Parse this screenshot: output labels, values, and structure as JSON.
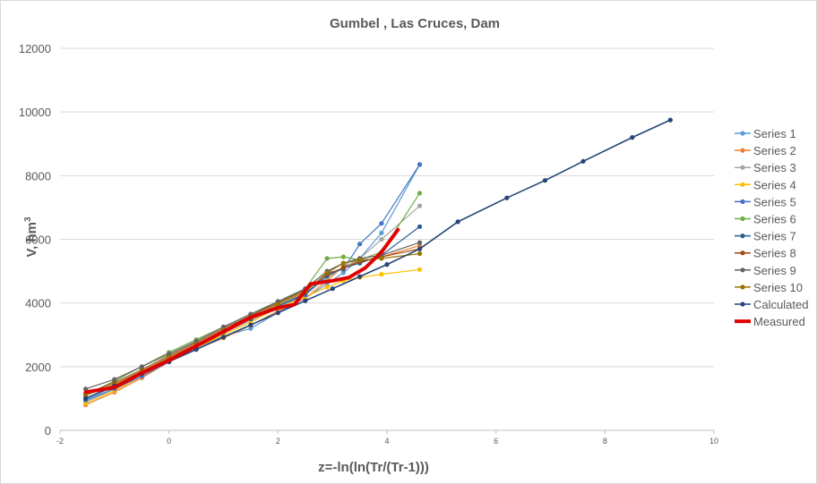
{
  "chart_data": {
    "type": "line",
    "title": "Gumbel , Las Cruces, Dam",
    "xlabel": "z=-ln(ln(Tr/(Tr-1)))",
    "ylabel_main": "V, hm",
    "ylabel_sup": "3",
    "xlim": [
      -2,
      10
    ],
    "ylim": [
      0,
      12000
    ],
    "xticks": [
      "-2",
      "0",
      "2",
      "4",
      "6",
      "8",
      "10"
    ],
    "yticks": [
      "0",
      "2000",
      "4000",
      "6000",
      "8000",
      "10000",
      "12000"
    ],
    "grid": "horizontal",
    "legend_position": "right",
    "series": [
      {
        "name": "Series 1",
        "color": "#5b9bd5",
        "width": 1.2,
        "markers": true,
        "x": [
          -1.53,
          -1.0,
          -0.5,
          0.0,
          0.5,
          1.0,
          1.5,
          2.0,
          2.5,
          2.9,
          3.2,
          3.5,
          3.9,
          4.6
        ],
        "y": [
          900,
          1300,
          1750,
          2200,
          2600,
          2950,
          3200,
          3700,
          4150,
          4600,
          4950,
          5400,
          6200,
          8350
        ]
      },
      {
        "name": "Series 2",
        "color": "#ed7d31",
        "width": 1.2,
        "markers": true,
        "x": [
          -1.53,
          -1.0,
          -0.5,
          0.0,
          0.5,
          1.0,
          1.5,
          2.0,
          2.5,
          2.9,
          3.2,
          3.5,
          3.9,
          4.6
        ],
        "y": [
          800,
          1200,
          1650,
          2150,
          2550,
          2900,
          3300,
          3750,
          4150,
          4700,
          5150,
          5300,
          5450,
          5800
        ]
      },
      {
        "name": "Series 3",
        "color": "#a5a5a5",
        "width": 1.2,
        "markers": true,
        "x": [
          -1.53,
          -1.0,
          -0.5,
          0.0,
          0.5,
          1.0,
          1.5,
          2.0,
          2.5,
          2.9,
          3.2,
          3.5,
          3.9,
          4.6
        ],
        "y": [
          1000,
          1350,
          1800,
          2250,
          2650,
          3050,
          3450,
          3850,
          4250,
          4800,
          5100,
          5400,
          6000,
          7050
        ]
      },
      {
        "name": "Series 4",
        "color": "#ffc000",
        "width": 1.2,
        "markers": true,
        "x": [
          -1.53,
          -1.0,
          -0.5,
          0.0,
          0.5,
          1.0,
          1.5,
          2.0,
          2.5,
          2.9,
          3.2,
          3.5,
          3.9,
          4.6
        ],
        "y": [
          850,
          1250,
          1700,
          2200,
          2600,
          3000,
          3400,
          3850,
          4200,
          4500,
          4700,
          4800,
          4900,
          5050
        ]
      },
      {
        "name": "Series 5",
        "color": "#4472c4",
        "width": 1.2,
        "markers": true,
        "x": [
          -1.53,
          -1.0,
          -0.5,
          0.0,
          0.5,
          1.0,
          1.5,
          2.0,
          2.5,
          2.9,
          3.2,
          3.5,
          3.9,
          4.6
        ],
        "y": [
          950,
          1300,
          1700,
          2150,
          2600,
          3100,
          3500,
          3900,
          4250,
          4950,
          5050,
          5850,
          6500,
          8350
        ]
      },
      {
        "name": "Series 6",
        "color": "#70ad47",
        "width": 1.2,
        "markers": true,
        "x": [
          -1.53,
          -1.0,
          -0.5,
          0.0,
          0.5,
          1.0,
          1.5,
          2.0,
          2.5,
          2.9,
          3.2,
          3.5,
          3.9,
          4.6
        ],
        "y": [
          1100,
          1550,
          2000,
          2450,
          2850,
          3250,
          3650,
          4000,
          4450,
          5400,
          5450,
          5350,
          5600,
          7450
        ]
      },
      {
        "name": "Series 7",
        "color": "#255e91",
        "width": 1.2,
        "markers": true,
        "x": [
          -1.53,
          -1.0,
          -0.5,
          0.0,
          0.5,
          1.0,
          1.5,
          2.0,
          2.5,
          2.9,
          3.2,
          3.5,
          3.9,
          4.6
        ],
        "y": [
          1000,
          1400,
          1800,
          2250,
          2650,
          3100,
          3500,
          3900,
          4300,
          4850,
          5100,
          5250,
          5500,
          6400
        ]
      },
      {
        "name": "Series 8",
        "color": "#9e480e",
        "width": 1.2,
        "markers": true,
        "x": [
          -1.53,
          -1.0,
          -0.5,
          0.0,
          0.5,
          1.0,
          1.5,
          2.0,
          2.5,
          2.9,
          3.2,
          3.5,
          3.9,
          4.6
        ],
        "y": [
          1150,
          1500,
          1900,
          2350,
          2750,
          3200,
          3600,
          4000,
          4400,
          4900,
          5100,
          5300,
          5450,
          5700
        ]
      },
      {
        "name": "Series 9",
        "color": "#636363",
        "width": 1.2,
        "markers": true,
        "x": [
          -1.53,
          -1.0,
          -0.5,
          0.0,
          0.5,
          1.0,
          1.5,
          2.0,
          2.5,
          2.9,
          3.2,
          3.5,
          3.9,
          4.6
        ],
        "y": [
          1300,
          1600,
          2000,
          2400,
          2800,
          3250,
          3650,
          4050,
          4450,
          5000,
          5250,
          5400,
          5500,
          5900
        ]
      },
      {
        "name": "Series 10",
        "color": "#997300",
        "width": 1.2,
        "markers": true,
        "x": [
          -1.53,
          -1.0,
          -0.5,
          0.0,
          0.5,
          1.0,
          1.5,
          2.0,
          2.5,
          2.9,
          3.2,
          3.5,
          3.9,
          4.6
        ],
        "y": [
          1100,
          1450,
          1850,
          2300,
          2700,
          3150,
          3550,
          3950,
          4350,
          4950,
          5250,
          5350,
          5400,
          5550
        ]
      },
      {
        "name": "Calculated",
        "color": "#264478",
        "width": 1.6,
        "markers": true,
        "x": [
          -1.53,
          -1.0,
          -0.5,
          0.0,
          0.5,
          1.0,
          1.5,
          2.0,
          2.5,
          3.0,
          3.5,
          4.0,
          4.6,
          5.3,
          6.2,
          6.9,
          7.6,
          8.5,
          9.2
        ],
        "y": [
          1000,
          1400,
          1780,
          2160,
          2540,
          2930,
          3310,
          3690,
          4070,
          4450,
          4830,
          5210,
          5700,
          6550,
          7300,
          7850,
          8450,
          9200,
          9750
        ]
      },
      {
        "name": "Measured",
        "color": "#e00000",
        "width": 4,
        "markers": false,
        "x": [
          -1.53,
          -1.0,
          -0.5,
          0.0,
          0.5,
          1.0,
          1.5,
          2.0,
          2.3,
          2.6,
          3.0,
          3.3,
          3.6,
          3.9,
          4.2
        ],
        "y": [
          1200,
          1350,
          1800,
          2200,
          2650,
          3100,
          3550,
          3850,
          3950,
          4600,
          4700,
          4800,
          5100,
          5600,
          6300
        ]
      }
    ]
  }
}
